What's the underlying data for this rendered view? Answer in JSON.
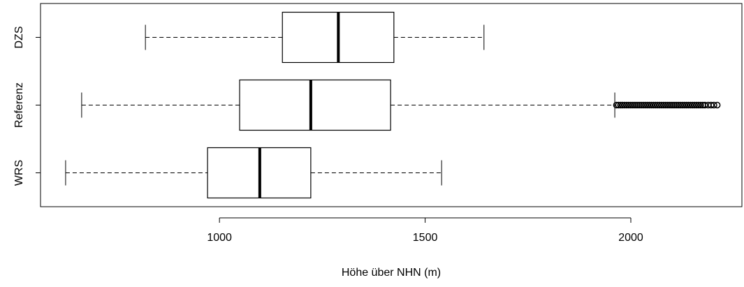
{
  "chart_data": {
    "type": "boxplot",
    "orientation": "horizontal",
    "xlabel": "Höhe über NHN (m)",
    "categories": [
      "WRS",
      "Referenz",
      "DZS"
    ],
    "min": [
      626,
      665,
      820
    ],
    "q1": [
      971,
      1049,
      1153
    ],
    "median": [
      1098,
      1222,
      1289
    ],
    "q3": [
      1222,
      1416,
      1424
    ],
    "max": [
      1540,
      1961,
      1643
    ],
    "outliers": [
      [],
      [
        1965,
        1970,
        1975,
        1980,
        1985,
        1990,
        1995,
        2000,
        2005,
        2010,
        2015,
        2020,
        2025,
        2030,
        2035,
        2040,
        2045,
        2050,
        2055,
        2060,
        2065,
        2070,
        2075,
        2080,
        2085,
        2090,
        2095,
        2100,
        2105,
        2110,
        2115,
        2120,
        2125,
        2130,
        2135,
        2140,
        2145,
        2150,
        2155,
        2160,
        2165,
        2170,
        2175,
        2180,
        2188,
        2195,
        2202,
        2210
      ],
      []
    ],
    "xlim": [
      565,
      2270
    ],
    "xticks": [
      1000,
      1500,
      2000
    ]
  }
}
